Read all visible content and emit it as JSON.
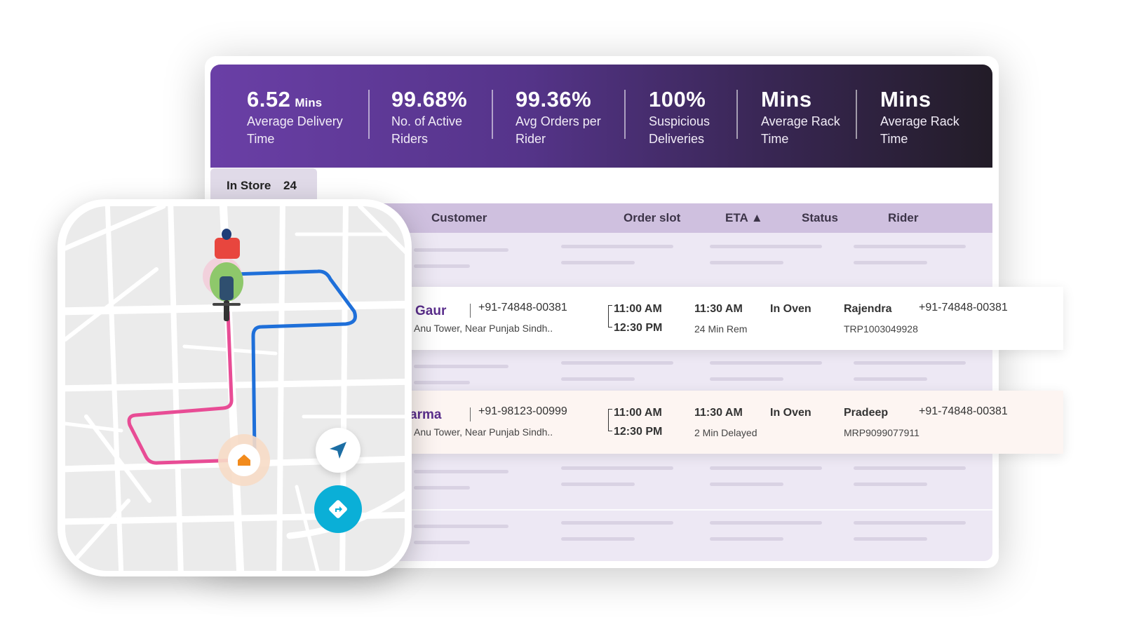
{
  "stats": [
    {
      "value": "6.52",
      "unit": "Mins",
      "label": "Average Delivery Time"
    },
    {
      "value": "99.68%",
      "unit": "",
      "label": "No. of Active Riders"
    },
    {
      "value": "99.36%",
      "unit": "",
      "label": "Avg Orders per Rider"
    },
    {
      "value": "100%",
      "unit": "",
      "label": "Suspicious Deliveries"
    },
    {
      "value": "Mins",
      "unit": "",
      "label": "Average Rack Time"
    },
    {
      "value": "Mins",
      "unit": "",
      "label": "Average Rack Time"
    }
  ],
  "tab": {
    "label": "In Store",
    "count": "24"
  },
  "table": {
    "headers": [
      "Customer",
      "Order slot",
      "ETA ▲",
      "Status",
      "Rider"
    ]
  },
  "orders": [
    {
      "name": "Gaur",
      "phone": "+91-74848-00381",
      "address": "Anu Tower, Near Punjab Sindh..",
      "slot_start": "11:00 AM",
      "slot_end": "12:30 PM",
      "eta": "11:30 AM",
      "eta_note": "24 Min Rem",
      "status": "In Oven",
      "rider": "Rajendra",
      "rider_phone": "+91-74848-00381",
      "rider_id": "TRP1003049928",
      "bg": "#ffffff"
    },
    {
      "name": "arma",
      "phone": "+91-98123-00999",
      "address": "Anu Tower, Near Punjab Sindh..",
      "slot_start": "11:00 AM",
      "slot_end": "12:30 PM",
      "eta": "11:30 AM",
      "eta_note": "2 Min Delayed",
      "status": "In Oven",
      "rider": "Pradeep",
      "rider_phone": "+91-74848-00381",
      "rider_id": "MRP9099077911",
      "bg": "#fdf5f2"
    }
  ],
  "map": {
    "icons": [
      "rider-icon",
      "home-icon",
      "navigate-arrow-icon",
      "directions-icon"
    ],
    "route_colors": {
      "traveled": "#e84c95",
      "remaining": "#1e6fd9"
    },
    "directions_button_color": "#0aafd7"
  },
  "colors": {
    "header_gradient_start": "#6a3fa6",
    "header_gradient_end": "#221c27",
    "table_header": "#cfc0df",
    "table_body": "#ede8f4",
    "customer_name": "#5a2e8c"
  }
}
